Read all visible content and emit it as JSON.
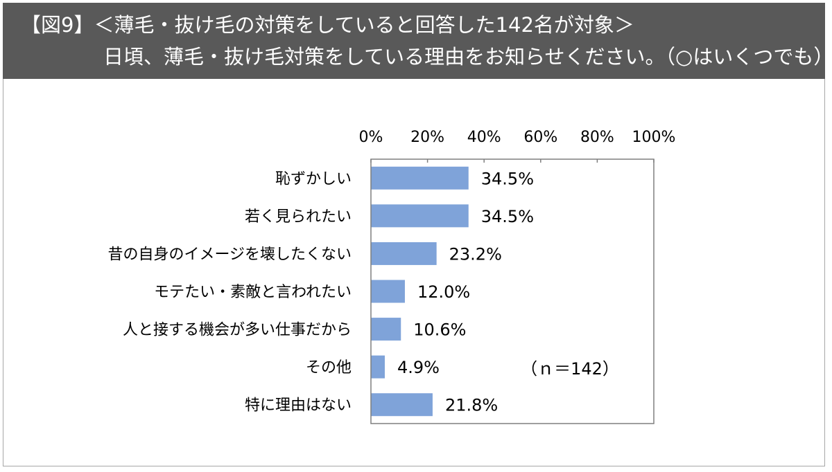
{
  "header": {
    "line1": "【図9】＜薄毛・抜け毛の対策をしていると回答した142名が対象＞",
    "line2": "日頃、薄毛・抜け毛対策をしている理由をお知らせください。（○はいくつでも）"
  },
  "chart_data": {
    "type": "bar",
    "orientation": "horizontal",
    "categories": [
      "恥ずかしい",
      "若く見られたい",
      "昔の自身のイメージを壊したくない",
      "モテたい・素敵と言われたい",
      "人と接する機会が多い仕事だから",
      "その他",
      "特に理由はない"
    ],
    "values": [
      34.5,
      34.5,
      23.2,
      12.0,
      10.6,
      4.9,
      21.8
    ],
    "value_labels": [
      "34.5%",
      "34.5%",
      "23.2%",
      "12.0%",
      "10.6%",
      "4.9%",
      "21.8%"
    ],
    "xlim": [
      0,
      100
    ],
    "x_ticks": [
      0,
      20,
      40,
      60,
      80,
      100
    ],
    "x_tick_labels": [
      "0%",
      "20%",
      "40%",
      "60%",
      "80%",
      "100%"
    ],
    "axis_position": "top",
    "grid": false,
    "bar_color": "#7fa3d9",
    "annotation": "（ｎ＝142）"
  }
}
